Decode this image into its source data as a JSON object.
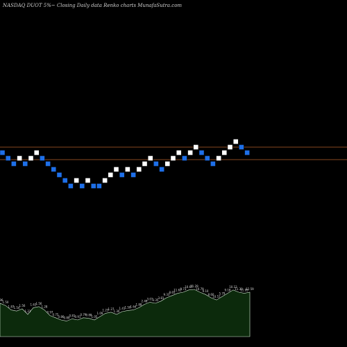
{
  "header": {
    "title": "NASDAQ DUOT 5%~  Closing Daily data  Renko  charts MunafaSutra.com"
  },
  "colors": {
    "background": "#000000",
    "up_brick": "#ffffff",
    "down_brick": "#1e6fe8",
    "brick_border": "#000000",
    "reference_line": "#b4622a",
    "volume_fill": "#0c2a0c",
    "volume_stroke": "#d8f0d8"
  },
  "chart_data": {
    "type": "renko",
    "title": "NASDAQ DUOT 5%~  Closing Daily data  Renko  charts MunafaSutra.com",
    "brick_size": "5%",
    "bricks": [
      {
        "dir": "down",
        "level": 0
      },
      {
        "dir": "down",
        "level": -1
      },
      {
        "dir": "down",
        "level": -2
      },
      {
        "dir": "up",
        "level": -1
      },
      {
        "dir": "down",
        "level": -2
      },
      {
        "dir": "up",
        "level": -1
      },
      {
        "dir": "up",
        "level": 0
      },
      {
        "dir": "down",
        "level": -1
      },
      {
        "dir": "down",
        "level": -2
      },
      {
        "dir": "down",
        "level": -3
      },
      {
        "dir": "down",
        "level": -4
      },
      {
        "dir": "down",
        "level": -5
      },
      {
        "dir": "down",
        "level": -6
      },
      {
        "dir": "up",
        "level": -5
      },
      {
        "dir": "down",
        "level": -6
      },
      {
        "dir": "up",
        "level": -5
      },
      {
        "dir": "down",
        "level": -6
      },
      {
        "dir": "down",
        "level": -6
      },
      {
        "dir": "up",
        "level": -5
      },
      {
        "dir": "up",
        "level": -4
      },
      {
        "dir": "up",
        "level": -3
      },
      {
        "dir": "down",
        "level": -4
      },
      {
        "dir": "up",
        "level": -3
      },
      {
        "dir": "down",
        "level": -4
      },
      {
        "dir": "up",
        "level": -3
      },
      {
        "dir": "up",
        "level": -2
      },
      {
        "dir": "up",
        "level": -1
      },
      {
        "dir": "down",
        "level": -2
      },
      {
        "dir": "down",
        "level": -3
      },
      {
        "dir": "up",
        "level": -2
      },
      {
        "dir": "up",
        "level": -1
      },
      {
        "dir": "up",
        "level": 0
      },
      {
        "dir": "down",
        "level": -1
      },
      {
        "dir": "up",
        "level": 0
      },
      {
        "dir": "up",
        "level": 1
      },
      {
        "dir": "down",
        "level": 0
      },
      {
        "dir": "down",
        "level": -1
      },
      {
        "dir": "down",
        "level": -2
      },
      {
        "dir": "up",
        "level": -1
      },
      {
        "dir": "up",
        "level": 0
      },
      {
        "dir": "up",
        "level": 1
      },
      {
        "dir": "up",
        "level": 2
      },
      {
        "dir": "down",
        "level": 1
      },
      {
        "dir": "down",
        "level": 0
      }
    ],
    "reference_lines": [
      {
        "name": "upper",
        "level": 1
      },
      {
        "name": "lower",
        "level": -1
      }
    ],
    "volume": {
      "values": [
        60,
        56,
        48,
        46,
        50,
        40,
        52,
        54,
        48,
        38,
        34,
        30,
        28,
        32,
        30,
        34,
        33,
        30,
        36,
        42,
        44,
        40,
        45,
        47,
        48,
        52,
        58,
        62,
        60,
        64,
        70,
        74,
        78,
        80,
        84,
        85,
        80,
        76,
        70,
        66,
        72,
        78,
        84,
        80,
        78,
        80
      ],
      "labels": [
        "1.96",
        "1.50",
        "1.87",
        "1.54",
        "1.56",
        "1.21",
        "1.63",
        "1.56",
        "1.28",
        "0.97",
        "0.75",
        "0.86",
        "0.89",
        "0.81",
        "0.91",
        "0.79",
        "0.88",
        "1.05",
        "1.09",
        "1.23",
        "1.27",
        "1.30",
        "1.41",
        "1.50",
        "1.64",
        "1.88",
        "2.48",
        "3.01",
        "3.35",
        "3.81",
        "9.33",
        "8.65",
        "11.62",
        "9.73",
        "10.67",
        "11.29",
        "10.79",
        "9.10",
        "8.60",
        "10.57",
        "5.79",
        "9.18",
        "10.12",
        "11.30",
        "11.95",
        "12.59"
      ]
    }
  }
}
